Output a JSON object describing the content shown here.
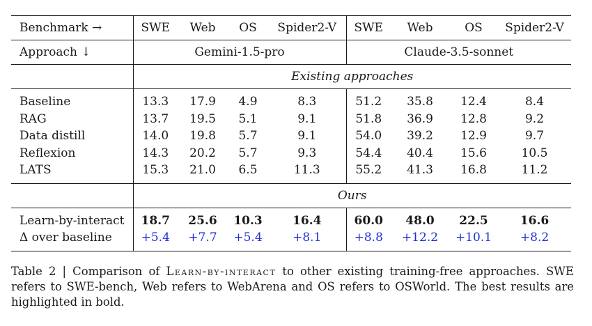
{
  "header": {
    "benchmark_label": "Benchmark →",
    "approach_label": "Approach ↓",
    "columns": [
      "SWE",
      "Web",
      "OS",
      "Spider2-V",
      "SWE",
      "Web",
      "OS",
      "Spider2-V"
    ],
    "model_left": "Gemini-1.5-pro",
    "model_right": "Claude-3.5-sonnet"
  },
  "sections": {
    "existing": "Existing approaches",
    "ours": "Ours"
  },
  "existing_rows": [
    {
      "name": "Baseline",
      "values": [
        "13.3",
        "17.9",
        "4.9",
        "8.3",
        "51.2",
        "35.8",
        "12.4",
        "8.4"
      ]
    },
    {
      "name": "RAG",
      "values": [
        "13.7",
        "19.5",
        "5.1",
        "9.1",
        "51.8",
        "36.9",
        "12.8",
        "9.2"
      ]
    },
    {
      "name": "Data distill",
      "values": [
        "14.0",
        "19.8",
        "5.7",
        "9.1",
        "54.0",
        "39.2",
        "12.9",
        "9.7"
      ]
    },
    {
      "name": "Reflexion",
      "values": [
        "14.3",
        "20.2",
        "5.7",
        "9.3",
        "54.4",
        "40.4",
        "15.6",
        "10.5"
      ]
    },
    {
      "name": "LATS",
      "values": [
        "15.3",
        "21.0",
        "6.5",
        "11.3",
        "55.2",
        "41.3",
        "16.8",
        "11.2"
      ]
    }
  ],
  "ours_rows": [
    {
      "name": "Learn-by-interact",
      "values": [
        "18.7",
        "25.6",
        "10.3",
        "16.4",
        "60.0",
        "48.0",
        "22.5",
        "16.6"
      ]
    },
    {
      "name": "Δ over baseline",
      "values": [
        "+5.4",
        "+7.7",
        "+5.4",
        "+8.1",
        "+8.8",
        "+12.2",
        "+10.1",
        "+8.2"
      ]
    }
  ],
  "caption": {
    "prefix": "Table 2 | Comparison of ",
    "method": "Learn-by-interact",
    "suffix": " to other existing training-free approaches. SWE refers to SWE-bench, Web refers to WebArena and OS refers to OSWorld. The best results are highlighted in bold."
  },
  "colors": {
    "text": "#1a1a1a",
    "delta": "#1f2fd6"
  }
}
